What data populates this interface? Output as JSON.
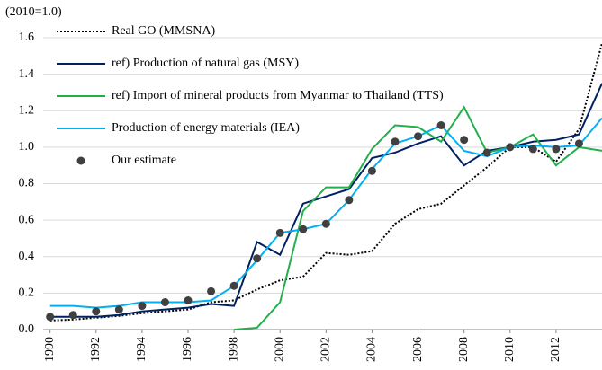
{
  "chart_data": {
    "type": "line",
    "y_label": "(2010=1.0)",
    "x": [
      1990,
      1991,
      1992,
      1993,
      1994,
      1995,
      1996,
      1997,
      1998,
      1999,
      2000,
      2001,
      2002,
      2003,
      2004,
      2005,
      2006,
      2007,
      2008,
      2009,
      2010,
      2011,
      2012,
      2013,
      2014
    ],
    "xlim": [
      1989.7,
      2014
    ],
    "xticks": [
      1990,
      1992,
      1994,
      1996,
      1998,
      2000,
      2002,
      2004,
      2006,
      2008,
      2010,
      2012
    ],
    "ylim": [
      0,
      1.6
    ],
    "yticks": [
      {
        "value": 0,
        "label": "0.0"
      },
      0.2,
      0.4,
      0.6,
      0.8,
      {
        "value": 1,
        "label": "1.0"
      },
      1.2,
      1.4,
      1.6
    ],
    "grid": true,
    "legend": "upper left",
    "series": [
      {
        "name": "Real GO (MMSNA)",
        "color": "#000000",
        "style": "dotted",
        "values": [
          0.05,
          0.055,
          0.065,
          0.075,
          0.09,
          0.1,
          0.11,
          0.15,
          0.16,
          0.22,
          0.27,
          0.29,
          0.42,
          0.41,
          0.43,
          0.58,
          0.66,
          0.69,
          0.79,
          0.89,
          1.0,
          1.0,
          0.92,
          1.1,
          1.57
        ]
      },
      {
        "name": "ref) Production of natural gas (MSY)",
        "color": "#002060",
        "style": "solid",
        "values": [
          0.07,
          0.07,
          0.07,
          0.08,
          0.1,
          0.11,
          0.12,
          0.14,
          0.13,
          0.48,
          0.41,
          0.69,
          0.73,
          0.77,
          0.94,
          0.97,
          1.02,
          1.06,
          0.9,
          0.98,
          1.0,
          1.03,
          1.04,
          1.07,
          1.35
        ]
      },
      {
        "name": "ref) Import of mineral products from Myanmar to Thailand (TTS)",
        "color": "#21b04b",
        "style": "solid",
        "values": [
          null,
          null,
          null,
          null,
          null,
          null,
          null,
          null,
          0.0,
          0.01,
          0.15,
          0.65,
          0.78,
          0.78,
          0.99,
          1.12,
          1.11,
          1.03,
          1.22,
          0.97,
          1.0,
          1.07,
          0.9,
          1.0,
          0.98
        ]
      },
      {
        "name": "Production of energy materials (IEA)",
        "color": "#00b0f0",
        "style": "solid",
        "values": [
          0.13,
          0.13,
          0.12,
          0.13,
          0.15,
          0.15,
          0.15,
          0.16,
          0.24,
          0.38,
          0.53,
          0.55,
          0.58,
          0.71,
          0.88,
          1.02,
          1.06,
          1.12,
          0.98,
          0.95,
          1.0,
          1.01,
          1.0,
          1.01,
          1.16
        ]
      },
      {
        "name": "Our estimate",
        "color": "#404040",
        "style": "marker",
        "values": [
          0.07,
          0.08,
          0.1,
          0.11,
          0.13,
          0.15,
          0.16,
          0.21,
          0.24,
          0.39,
          0.53,
          0.55,
          0.58,
          0.71,
          0.87,
          1.03,
          1.06,
          1.12,
          1.04,
          0.97,
          1.0,
          0.99,
          0.99,
          1.02,
          null
        ]
      }
    ]
  }
}
